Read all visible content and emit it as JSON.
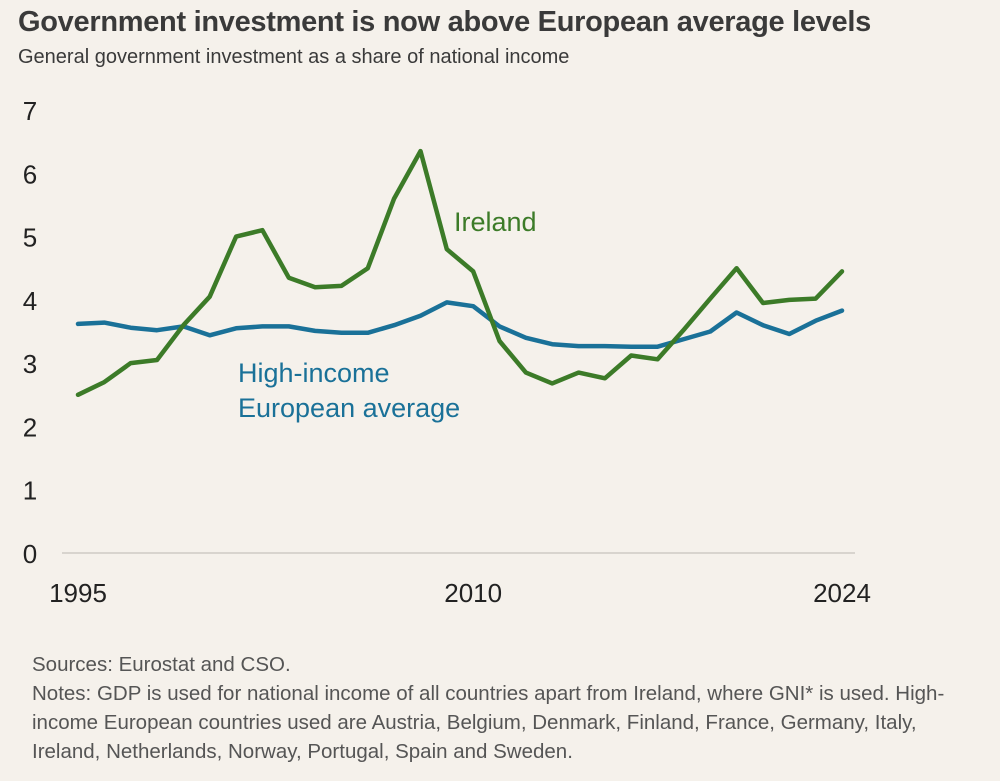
{
  "header": {
    "title": "Government investment is now above European average levels",
    "subtitle": "General government investment as a share of national income"
  },
  "footer": {
    "sources": "Sources: Eurostat and CSO.",
    "notes": "Notes: GDP is used for national income of all countries apart from Ireland, where GNI* is used. High-income European countries used are Austria, Belgium, Denmark, Finland, France, Germany, Italy, Ireland, Netherlands, Norway, Portugal, Spain and Sweden."
  },
  "chart_data": {
    "type": "line",
    "title": "Government investment is now above European average levels",
    "subtitle": "General government investment as a share of national income",
    "xlabel": "",
    "ylabel": "",
    "x": [
      1995,
      1996,
      1997,
      1998,
      1999,
      2000,
      2001,
      2002,
      2003,
      2004,
      2005,
      2006,
      2007,
      2008,
      2009,
      2010,
      2011,
      2012,
      2013,
      2014,
      2015,
      2016,
      2017,
      2018,
      2019,
      2020,
      2021,
      2022,
      2023,
      2024
    ],
    "x_ticks": [
      1995,
      2010,
      2024
    ],
    "y_ticks": [
      0,
      1,
      2,
      3,
      4,
      5,
      6,
      7
    ],
    "ylim": [
      0,
      7
    ],
    "xlim": [
      1995,
      2024
    ],
    "grid": false,
    "series": [
      {
        "name": "Ireland",
        "color": "#3c7b28",
        "values": [
          2.5,
          2.7,
          3.0,
          3.05,
          3.6,
          4.05,
          5.0,
          5.1,
          4.35,
          4.2,
          4.22,
          4.5,
          5.6,
          6.35,
          4.8,
          4.45,
          3.35,
          2.85,
          2.68,
          2.85,
          2.76,
          3.12,
          3.06,
          3.53,
          4.02,
          4.5,
          3.95,
          4.0,
          4.02,
          4.45
        ]
      },
      {
        "name": "High-income European average",
        "label_lines": [
          "High-income",
          "European average"
        ],
        "color": "#1a7198",
        "values": [
          3.62,
          3.64,
          3.56,
          3.52,
          3.58,
          3.44,
          3.55,
          3.58,
          3.58,
          3.51,
          3.48,
          3.48,
          3.6,
          3.75,
          3.96,
          3.9,
          3.58,
          3.4,
          3.3,
          3.27,
          3.27,
          3.26,
          3.26,
          3.38,
          3.5,
          3.8,
          3.6,
          3.46,
          3.67,
          3.83
        ]
      }
    ]
  }
}
